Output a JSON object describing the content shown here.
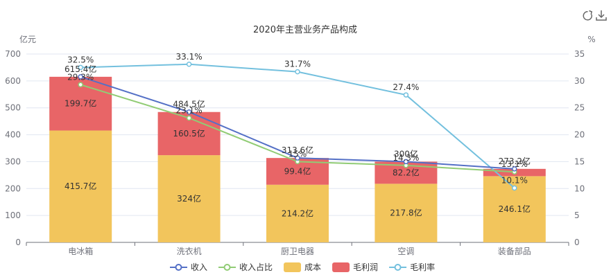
{
  "toolbar": {
    "refresh_icon": "refresh-icon",
    "download_icon": "download-icon"
  },
  "colors": {
    "cost": "#f2c55c",
    "profit": "#e86567",
    "revenue": "#5470c6",
    "share": "#91cc75",
    "margin": "#73c0de"
  },
  "chart_data": {
    "type": "bar",
    "title": "2020年主营业务产品构成",
    "ylabel": "亿元",
    "y2label": "%",
    "categories": [
      "电冰箱",
      "洗衣机",
      "厨卫电器",
      "空调",
      "装备部品"
    ],
    "ylim": [
      0,
      700
    ],
    "y_ticks": [
      "0",
      "100",
      "200",
      "300",
      "400",
      "500",
      "600",
      "700"
    ],
    "y2lim": [
      0,
      35
    ],
    "y2_ticks": [
      "0",
      "5",
      "10",
      "15",
      "20",
      "25",
      "30",
      "35"
    ],
    "stacked": true,
    "grid": true,
    "legend_position": "bottom",
    "series": [
      {
        "name": "收入",
        "kind": "line",
        "axis": "left",
        "values": [
          615.4,
          484.5,
          313.6,
          300,
          273.2
        ],
        "labels": [
          "615.4亿",
          "484.5亿",
          "313.6亿",
          "300亿",
          "273.2亿"
        ]
      },
      {
        "name": "收入占比",
        "kind": "line",
        "axis": "right",
        "values": [
          29.3,
          23.1,
          15,
          14.3,
          13.1
        ],
        "labels": [
          "29.3%",
          "23.1%",
          "15%",
          "14.3%",
          "13.1%"
        ]
      },
      {
        "name": "成本",
        "kind": "bar",
        "axis": "left",
        "values": [
          415.7,
          324,
          214.2,
          217.8,
          246.1
        ],
        "labels": [
          "415.7亿",
          "324亿",
          "214.2亿",
          "217.8亿",
          "246.1亿"
        ]
      },
      {
        "name": "毛利润",
        "kind": "bar",
        "axis": "left",
        "values": [
          199.7,
          160.5,
          99.4,
          82.2,
          27.1
        ],
        "labels": [
          "199.7亿",
          "160.5亿",
          "99.4亿",
          "82.2亿",
          ""
        ]
      },
      {
        "name": "毛利率",
        "kind": "line",
        "axis": "right",
        "values": [
          32.5,
          33.1,
          31.7,
          27.4,
          10.1
        ],
        "labels": [
          "32.5%",
          "33.1%",
          "31.7%",
          "27.4%",
          "10.1%"
        ]
      }
    ]
  }
}
